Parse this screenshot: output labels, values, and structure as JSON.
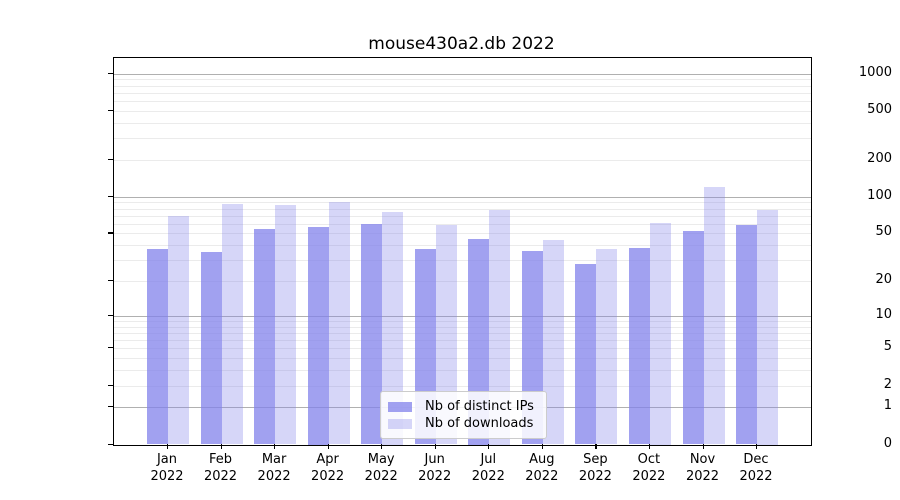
{
  "chart_data": {
    "type": "bar",
    "title": "mouse430a2.db 2022",
    "y_scale": "log1p",
    "grid": true,
    "categories": [
      "Jan",
      "Feb",
      "Mar",
      "Apr",
      "May",
      "Jun",
      "Jul",
      "Aug",
      "Sep",
      "Oct",
      "Nov",
      "Dec"
    ],
    "category_year": "2022",
    "series": [
      {
        "name": "Nb of distinct IPs",
        "color": "rgba(130,130,235,0.75)",
        "values": [
          37,
          35,
          54,
          57,
          60,
          37,
          45,
          36,
          28,
          38,
          52,
          59
        ]
      },
      {
        "name": "Nb of downloads",
        "color": "rgba(130,130,235,0.33)",
        "values": [
          69,
          87,
          85,
          90,
          75,
          59,
          78,
          44,
          37,
          61,
          120,
          78
        ]
      }
    ],
    "y_ticks": [
      1000,
      500,
      200,
      100,
      50,
      20,
      10,
      5,
      2,
      1,
      0
    ],
    "major_grid_values": [
      1,
      10,
      100,
      1000
    ],
    "minor_grid_values": [
      2,
      3,
      4,
      5,
      6,
      7,
      8,
      9,
      20,
      30,
      40,
      50,
      60,
      70,
      80,
      90,
      200,
      300,
      400,
      500,
      600,
      700,
      800,
      900
    ],
    "ylim": [
      0,
      1300
    ],
    "legend_position": "lower center",
    "colors": {
      "major_grid": "#b0b0b0",
      "minor_grid": "#ebebeb",
      "spine": "#000000",
      "bar_base": "#8282eb"
    }
  }
}
